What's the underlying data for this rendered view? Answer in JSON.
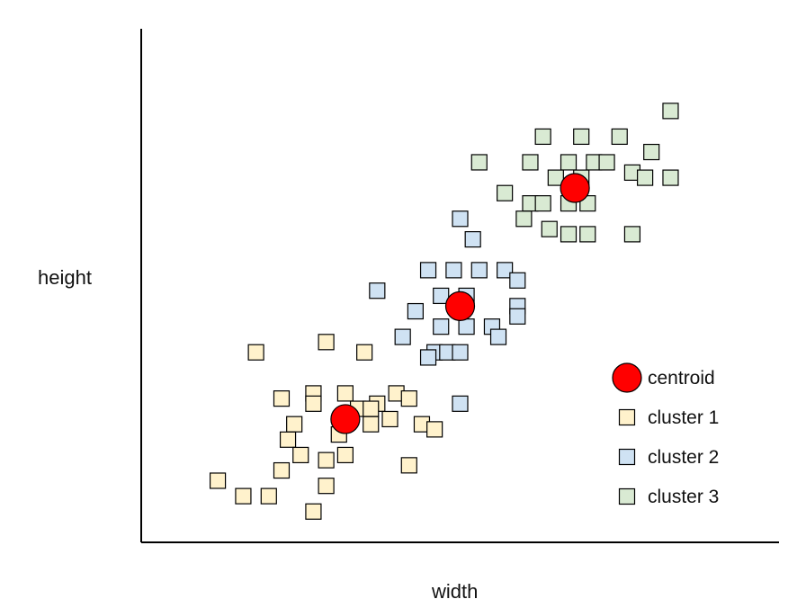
{
  "chart_data": {
    "type": "scatter",
    "title": "",
    "xlabel": "width",
    "ylabel": "height",
    "xlim": [
      0,
      100
    ],
    "ylim": [
      0,
      100
    ],
    "grid": false,
    "legend_position": "bottom-right",
    "series": [
      {
        "name": "cluster 1",
        "marker": "square",
        "color": "#fff2cc",
        "stroke": "#000000",
        "points": [
          [
            18,
            37
          ],
          [
            29,
            39
          ],
          [
            35,
            37
          ],
          [
            12,
            12
          ],
          [
            16,
            9
          ],
          [
            20,
            9
          ],
          [
            22,
            28
          ],
          [
            27,
            29
          ],
          [
            32,
            29
          ],
          [
            34,
            26
          ],
          [
            24,
            23
          ],
          [
            27,
            27
          ],
          [
            31,
            21
          ],
          [
            37,
            27
          ],
          [
            40,
            29
          ],
          [
            42,
            28
          ],
          [
            39,
            24
          ],
          [
            44,
            23
          ],
          [
            46,
            22
          ],
          [
            42,
            15
          ],
          [
            36,
            23
          ],
          [
            36,
            26
          ],
          [
            23,
            20
          ],
          [
            25,
            17
          ],
          [
            32,
            17
          ],
          [
            22,
            14
          ],
          [
            29,
            16
          ],
          [
            29,
            11
          ],
          [
            27,
            6
          ]
        ]
      },
      {
        "name": "cluster 2",
        "marker": "square",
        "color": "#cfe2f3",
        "stroke": "#000000",
        "points": [
          [
            50,
            63
          ],
          [
            52,
            59
          ],
          [
            45,
            53
          ],
          [
            49,
            53
          ],
          [
            53,
            53
          ],
          [
            57,
            53
          ],
          [
            59,
            51
          ],
          [
            37,
            49
          ],
          [
            47,
            48
          ],
          [
            51,
            48
          ],
          [
            59,
            46
          ],
          [
            43,
            45
          ],
          [
            59,
            44
          ],
          [
            47,
            42
          ],
          [
            51,
            42
          ],
          [
            55,
            42
          ],
          [
            56,
            40
          ],
          [
            41,
            40
          ],
          [
            46,
            37
          ],
          [
            48,
            37
          ],
          [
            50,
            37
          ],
          [
            45,
            36
          ],
          [
            50,
            27
          ]
        ]
      },
      {
        "name": "cluster 3",
        "marker": "square",
        "color": "#d9ead3",
        "stroke": "#000000",
        "points": [
          [
            83,
            84
          ],
          [
            63,
            79
          ],
          [
            69,
            79
          ],
          [
            75,
            79
          ],
          [
            80,
            76
          ],
          [
            53,
            74
          ],
          [
            61,
            74
          ],
          [
            67,
            74
          ],
          [
            71,
            74
          ],
          [
            73,
            74
          ],
          [
            77,
            72
          ],
          [
            65,
            71
          ],
          [
            69,
            71
          ],
          [
            79,
            71
          ],
          [
            83,
            71
          ],
          [
            57,
            68
          ],
          [
            61,
            66
          ],
          [
            63,
            66
          ],
          [
            67,
            66
          ],
          [
            70,
            66
          ],
          [
            60,
            63
          ],
          [
            64,
            61
          ],
          [
            67,
            60
          ],
          [
            70,
            60
          ],
          [
            77,
            60
          ]
        ]
      }
    ],
    "centroids": {
      "name": "centroid",
      "marker": "circle",
      "color": "#ff0000",
      "stroke": "#000000",
      "points": [
        [
          32,
          24
        ],
        [
          50,
          46
        ],
        [
          68,
          69
        ]
      ]
    },
    "legend": [
      {
        "label": "centroid",
        "marker": "circle",
        "color": "#ff0000"
      },
      {
        "label": "cluster 1",
        "marker": "square",
        "color": "#fff2cc"
      },
      {
        "label": "cluster 2",
        "marker": "square",
        "color": "#cfe2f3"
      },
      {
        "label": "cluster 3",
        "marker": "square",
        "color": "#d9ead3"
      }
    ]
  }
}
